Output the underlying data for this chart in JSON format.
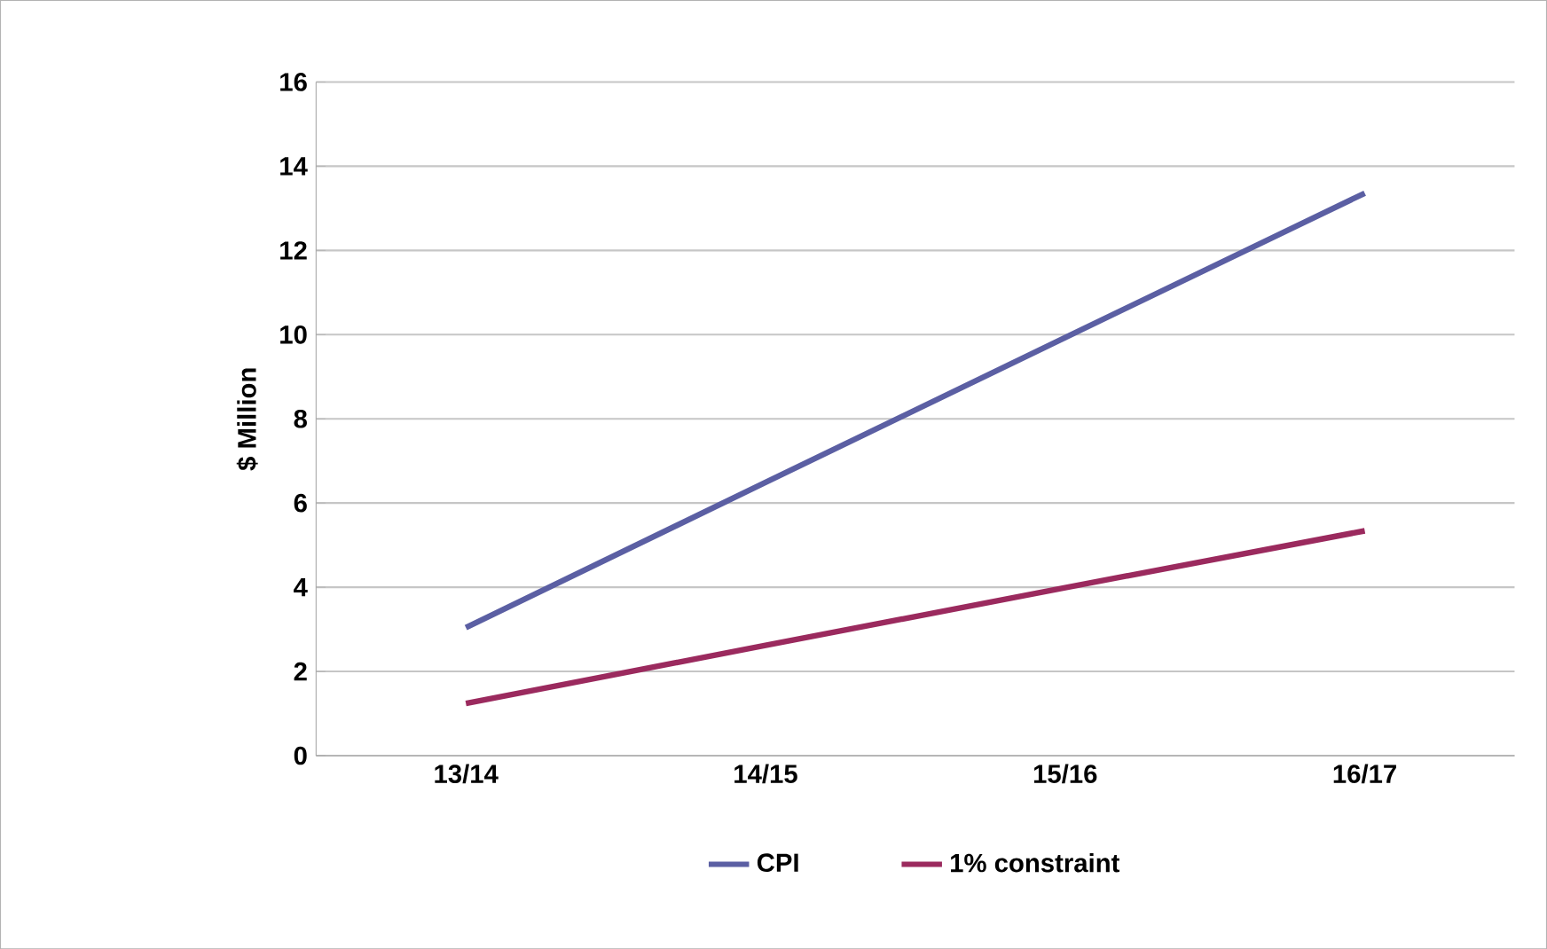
{
  "chart_data": {
    "type": "line",
    "ylabel": "$ Million",
    "categories": [
      "13/14",
      "14/15",
      "15/16",
      "16/17"
    ],
    "series": [
      {
        "name": "CPI",
        "color": "#5b5fa3",
        "values": [
          3.04,
          6.49,
          9.93,
          13.36
        ]
      },
      {
        "name": "1% constraint",
        "color": "#9b2a5e",
        "values": [
          1.24,
          2.62,
          3.99,
          5.34
        ]
      }
    ],
    "ylim": [
      0,
      16
    ],
    "yticks": [
      0,
      2,
      4,
      6,
      8,
      10,
      12,
      14,
      16
    ],
    "grid": "y",
    "legend": "bottom",
    "marker": "none",
    "line_style": "solid"
  }
}
